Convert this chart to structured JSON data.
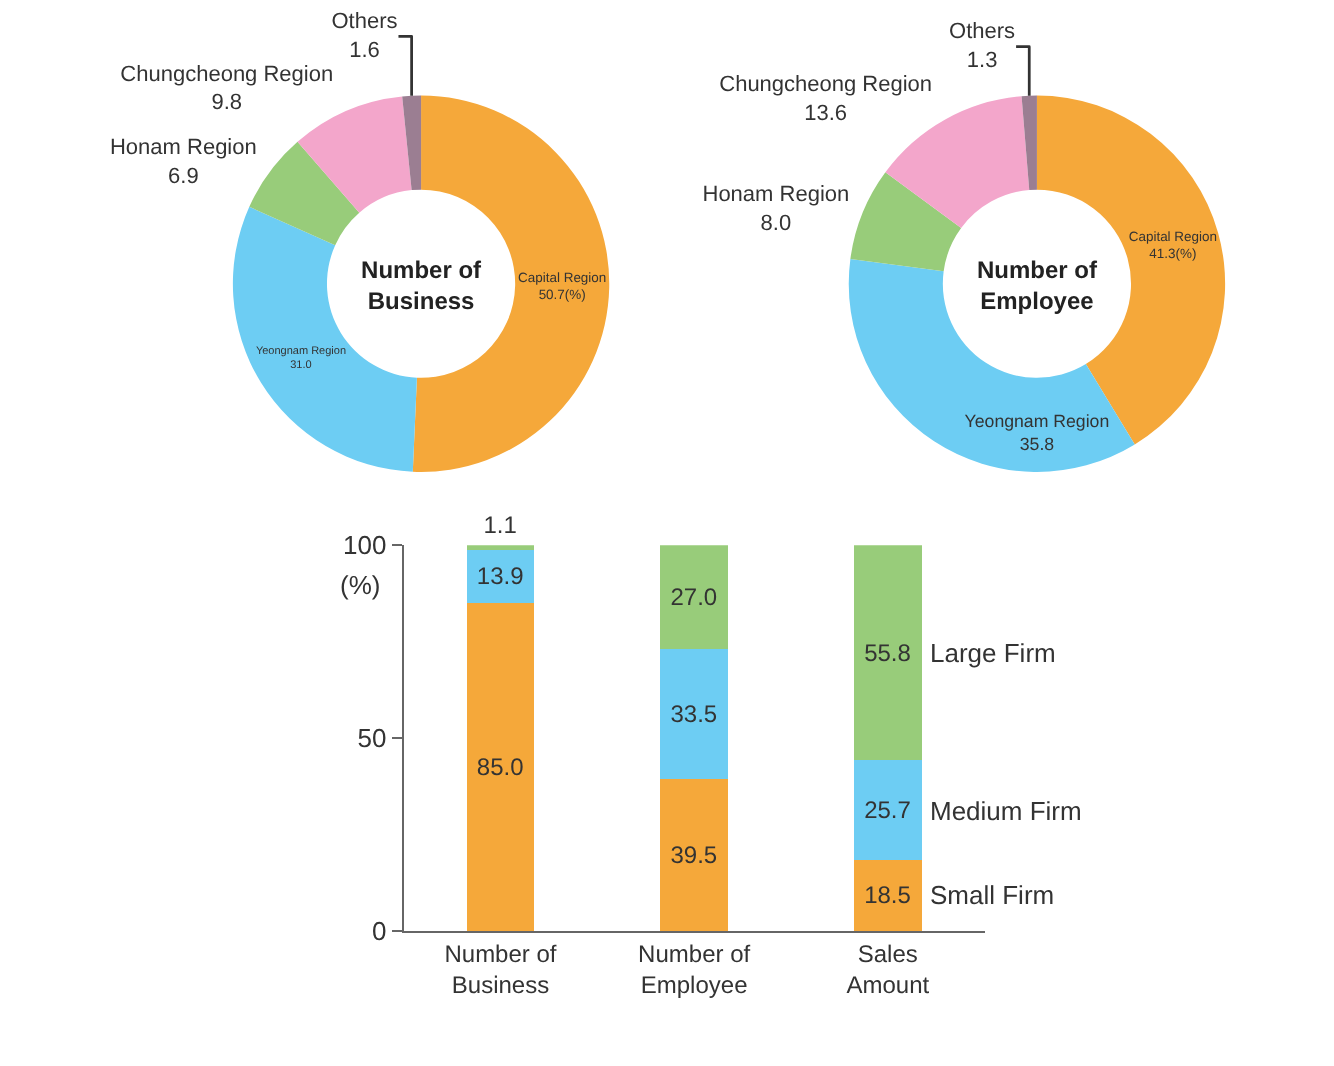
{
  "chart_data": [
    {
      "type": "donut",
      "title": "Number of Business",
      "categories": [
        "Capital Region",
        "Yeongnam Region",
        "Honam Region",
        "Chungcheong Region",
        "Others"
      ],
      "values": [
        50.7,
        31.0,
        6.9,
        9.8,
        1.6
      ],
      "value_labels": [
        "50.7(%)",
        "31.0",
        "6.9",
        "9.8",
        "1.6"
      ],
      "colors": [
        "#f5a83a",
        "#6dcdf3",
        "#98cc7a",
        "#f3a6cb",
        "#9b7e92"
      ],
      "legend": false
    },
    {
      "type": "donut",
      "title": "Number of Employee",
      "categories": [
        "Capital Region",
        "Yeongnam Region",
        "Honam Region",
        "Chungcheong Region",
        "Others"
      ],
      "values": [
        41.3,
        35.8,
        8.0,
        13.6,
        1.3
      ],
      "value_labels": [
        "41.3(%)",
        "35.8",
        "8.0",
        "13.6",
        "1.3"
      ],
      "colors": [
        "#f5a83a",
        "#6dcdf3",
        "#98cc7a",
        "#f3a6cb",
        "#9b7e92"
      ],
      "legend": false
    },
    {
      "type": "bar",
      "stacked": true,
      "categories": [
        "Number of Business",
        "Number of Employee",
        "Sales Amount"
      ],
      "ylabel": "(%)",
      "ylim": [
        0,
        100
      ],
      "yticks": [
        0,
        50,
        100
      ],
      "legend": false,
      "series": [
        {
          "name": "Small Firm",
          "color": "#f5a83a",
          "values": [
            85.0,
            39.5,
            18.5
          ],
          "value_labels": [
            "85.0",
            "39.5",
            "18.5"
          ]
        },
        {
          "name": "Medium Firm",
          "color": "#6dcdf3",
          "values": [
            13.9,
            33.5,
            25.7
          ],
          "value_labels": [
            "13.9",
            "33.5",
            "25.7"
          ]
        },
        {
          "name": "Large Firm",
          "color": "#98cc7a",
          "values": [
            1.1,
            27.0,
            55.8
          ],
          "value_labels": [
            "1.1",
            "27.0",
            "55.8"
          ]
        }
      ]
    }
  ]
}
